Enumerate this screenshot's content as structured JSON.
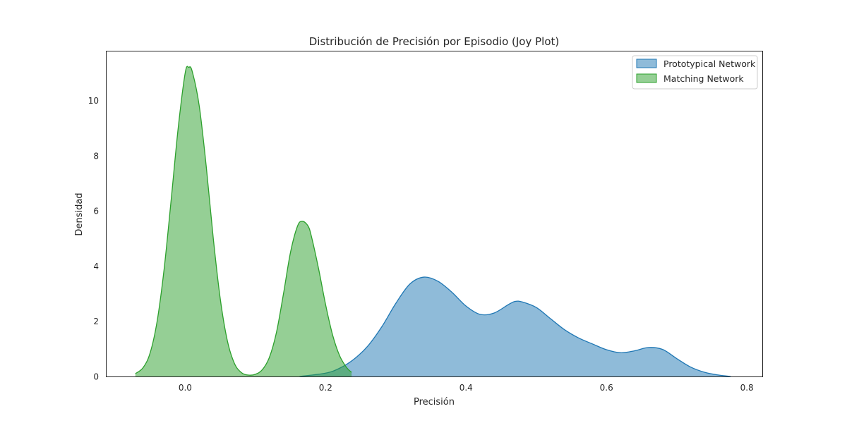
{
  "chart_data": {
    "type": "area",
    "title": "Distribución de Precisión por Episodio (Joy Plot)",
    "xlabel": "Precisión",
    "ylabel": "Densidad",
    "xlim": [
      -0.113,
      0.822
    ],
    "ylim": [
      0,
      11.8
    ],
    "x_ticks": [
      0.0,
      0.2,
      0.4,
      0.6,
      0.8
    ],
    "x_tick_labels": [
      "0.0",
      "0.2",
      "0.4",
      "0.6",
      "0.8"
    ],
    "y_ticks": [
      0,
      2,
      4,
      6,
      8,
      10
    ],
    "y_tick_labels": [
      "0",
      "2",
      "4",
      "6",
      "8",
      "10"
    ],
    "grid": false,
    "legend_position": "top-right",
    "series": [
      {
        "name": "Prototypical Network",
        "fill_color": "#1f77b4",
        "line_color": "#1f77b4",
        "fill_opacity": 0.5,
        "points": [
          [
            0.163,
            0.0
          ],
          [
            0.2,
            0.12
          ],
          [
            0.22,
            0.3
          ],
          [
            0.24,
            0.62
          ],
          [
            0.26,
            1.1
          ],
          [
            0.28,
            1.8
          ],
          [
            0.3,
            2.65
          ],
          [
            0.32,
            3.35
          ],
          [
            0.34,
            3.6
          ],
          [
            0.36,
            3.45
          ],
          [
            0.38,
            3.05
          ],
          [
            0.4,
            2.55
          ],
          [
            0.42,
            2.25
          ],
          [
            0.44,
            2.3
          ],
          [
            0.46,
            2.6
          ],
          [
            0.47,
            2.72
          ],
          [
            0.48,
            2.7
          ],
          [
            0.5,
            2.5
          ],
          [
            0.52,
            2.1
          ],
          [
            0.54,
            1.7
          ],
          [
            0.56,
            1.4
          ],
          [
            0.58,
            1.18
          ],
          [
            0.6,
            0.97
          ],
          [
            0.62,
            0.86
          ],
          [
            0.64,
            0.93
          ],
          [
            0.66,
            1.05
          ],
          [
            0.68,
            0.98
          ],
          [
            0.7,
            0.65
          ],
          [
            0.72,
            0.34
          ],
          [
            0.74,
            0.15
          ],
          [
            0.76,
            0.05
          ],
          [
            0.777,
            0.0
          ]
        ]
      },
      {
        "name": "Matching Network",
        "fill_color": "#2ca02c",
        "line_color": "#2ca02c",
        "fill_opacity": 0.5,
        "points": [
          [
            -0.071,
            0.1
          ],
          [
            -0.06,
            0.32
          ],
          [
            -0.05,
            0.85
          ],
          [
            -0.04,
            2.0
          ],
          [
            -0.03,
            3.9
          ],
          [
            -0.02,
            6.4
          ],
          [
            -0.01,
            9.0
          ],
          [
            0.0,
            11.0
          ],
          [
            0.005,
            11.2
          ],
          [
            0.01,
            11.05
          ],
          [
            0.02,
            9.8
          ],
          [
            0.03,
            7.6
          ],
          [
            0.04,
            5.0
          ],
          [
            0.05,
            2.8
          ],
          [
            0.06,
            1.3
          ],
          [
            0.07,
            0.48
          ],
          [
            0.08,
            0.14
          ],
          [
            0.09,
            0.05
          ],
          [
            0.1,
            0.08
          ],
          [
            0.11,
            0.25
          ],
          [
            0.12,
            0.7
          ],
          [
            0.13,
            1.6
          ],
          [
            0.14,
            3.0
          ],
          [
            0.15,
            4.5
          ],
          [
            0.16,
            5.45
          ],
          [
            0.167,
            5.62
          ],
          [
            0.175,
            5.45
          ],
          [
            0.18,
            5.05
          ],
          [
            0.19,
            3.9
          ],
          [
            0.2,
            2.6
          ],
          [
            0.21,
            1.5
          ],
          [
            0.22,
            0.75
          ],
          [
            0.23,
            0.32
          ],
          [
            0.237,
            0.15
          ]
        ]
      }
    ]
  }
}
